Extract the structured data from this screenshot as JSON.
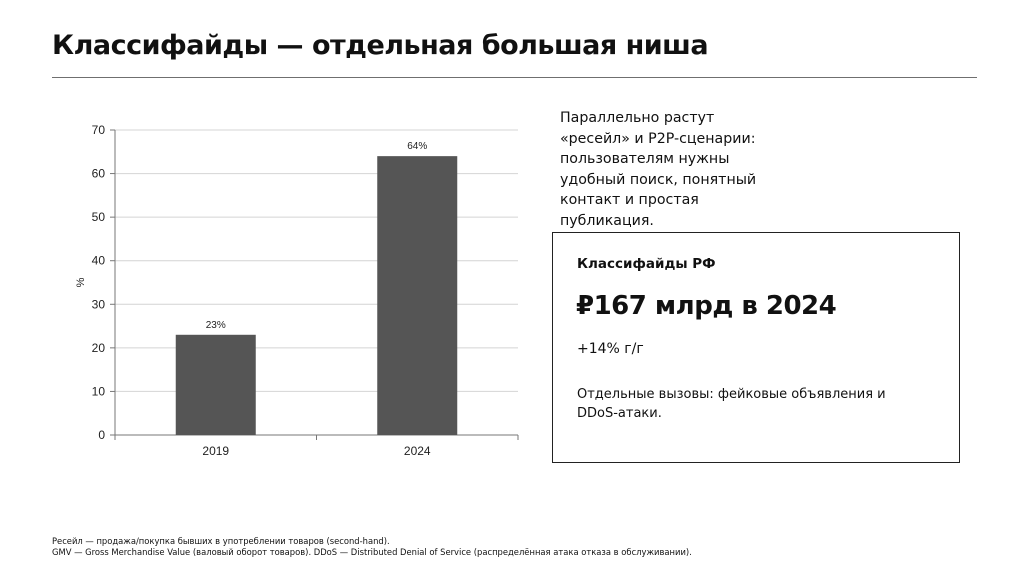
{
  "slide": {
    "title": "Классифайды — отдельная большая ниша"
  },
  "chart_data": {
    "type": "bar",
    "categories": [
      "2019",
      "2024"
    ],
    "values": [
      23,
      64
    ],
    "data_labels": [
      "23%",
      "64%"
    ],
    "ylabel": "%",
    "ylim": [
      0,
      70
    ],
    "yticks": [
      "0",
      "10",
      "20",
      "30",
      "40",
      "50",
      "60",
      "70"
    ],
    "grid": true,
    "bar_color": "#555555",
    "grid_color": "#d4d4d4"
  },
  "side_text": "Параллельно растут «ресейл» и P2P-сценарии: пользователям нужны удобный поиск, понятный контакт и простая публикация.",
  "kpi_box": {
    "label": "Классифайды РФ",
    "value": "₽167 млрд в 2024",
    "growth": "+14% г/г",
    "note": "Отдельные вызовы: фейковые объявления и DDoS-атаки."
  },
  "footnotes": [
    "Ресейл — продажа/покупка бывших в употреблении товаров (second-hand).",
    "GMV — Gross Merchandise Value (валовый оборот товаров). DDoS — Distributed Denial of Service (распределённая атака отказа в обслуживании)."
  ]
}
